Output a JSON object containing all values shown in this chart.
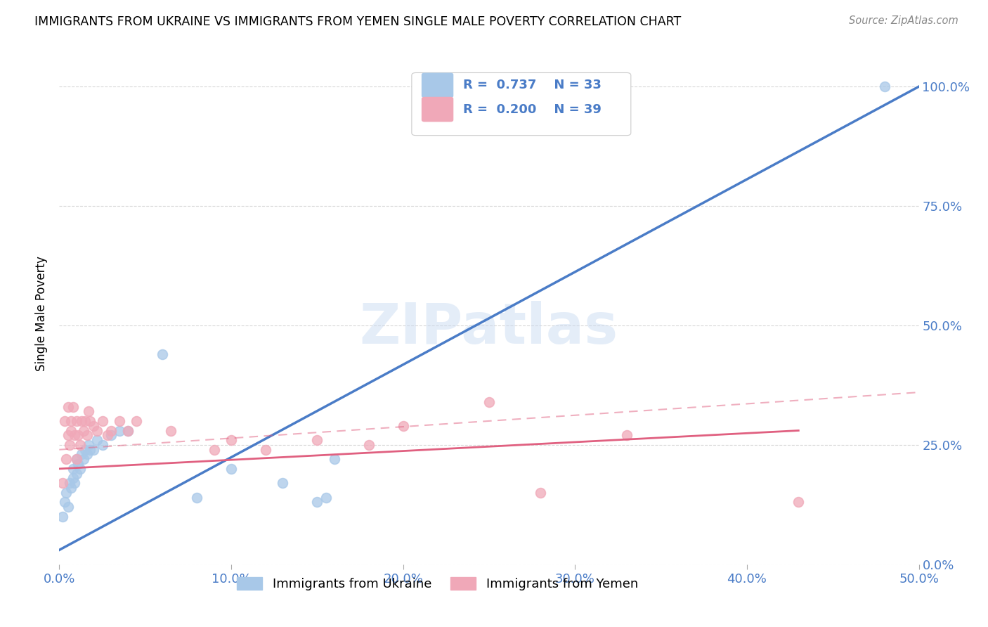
{
  "title": "IMMIGRANTS FROM UKRAINE VS IMMIGRANTS FROM YEMEN SINGLE MALE POVERTY CORRELATION CHART",
  "source": "Source: ZipAtlas.com",
  "ylabel": "Single Male Poverty",
  "x_tick_labels": [
    "0.0%",
    "10.0%",
    "20.0%",
    "30.0%",
    "40.0%",
    "50.0%"
  ],
  "y_tick_labels_right": [
    "0.0%",
    "25.0%",
    "50.0%",
    "75.0%",
    "100.0%"
  ],
  "xlim": [
    0.0,
    0.5
  ],
  "ylim": [
    0.0,
    1.05
  ],
  "ukraine_R": 0.737,
  "ukraine_N": 33,
  "yemen_R": 0.2,
  "yemen_N": 39,
  "ukraine_color": "#a8c8e8",
  "ukraine_line_color": "#4a7cc7",
  "yemen_color": "#f0a8b8",
  "yemen_line_color": "#e06080",
  "legend_text_color": "#4a7cc7",
  "watermark": "ZIPatlas",
  "ukraine_scatter_x": [
    0.002,
    0.003,
    0.004,
    0.005,
    0.006,
    0.007,
    0.008,
    0.008,
    0.009,
    0.01,
    0.01,
    0.011,
    0.012,
    0.013,
    0.014,
    0.015,
    0.016,
    0.017,
    0.018,
    0.02,
    0.022,
    0.025,
    0.03,
    0.035,
    0.04,
    0.06,
    0.08,
    0.1,
    0.13,
    0.15,
    0.155,
    0.16,
    0.48
  ],
  "ukraine_scatter_y": [
    0.1,
    0.13,
    0.15,
    0.12,
    0.17,
    0.16,
    0.2,
    0.18,
    0.17,
    0.22,
    0.19,
    0.21,
    0.2,
    0.23,
    0.22,
    0.24,
    0.23,
    0.25,
    0.24,
    0.24,
    0.26,
    0.25,
    0.27,
    0.28,
    0.28,
    0.44,
    0.14,
    0.2,
    0.17,
    0.13,
    0.14,
    0.22,
    1.0
  ],
  "ukraine_line_x": [
    0.0,
    0.5
  ],
  "ukraine_line_y": [
    0.03,
    1.0
  ],
  "yemen_scatter_x": [
    0.002,
    0.003,
    0.004,
    0.005,
    0.005,
    0.006,
    0.007,
    0.007,
    0.008,
    0.009,
    0.01,
    0.01,
    0.011,
    0.012,
    0.013,
    0.014,
    0.015,
    0.016,
    0.017,
    0.018,
    0.02,
    0.022,
    0.025,
    0.028,
    0.03,
    0.035,
    0.04,
    0.045,
    0.065,
    0.09,
    0.1,
    0.12,
    0.15,
    0.18,
    0.2,
    0.25,
    0.28,
    0.33,
    0.43
  ],
  "yemen_scatter_y": [
    0.17,
    0.3,
    0.22,
    0.27,
    0.33,
    0.25,
    0.3,
    0.28,
    0.33,
    0.27,
    0.22,
    0.3,
    0.27,
    0.25,
    0.3,
    0.28,
    0.3,
    0.27,
    0.32,
    0.3,
    0.29,
    0.28,
    0.3,
    0.27,
    0.28,
    0.3,
    0.28,
    0.3,
    0.28,
    0.24,
    0.26,
    0.24,
    0.26,
    0.25,
    0.29,
    0.34,
    0.15,
    0.27,
    0.13
  ],
  "yemen_solid_line_x": [
    0.0,
    0.43
  ],
  "yemen_solid_line_y": [
    0.2,
    0.28
  ],
  "yemen_dashed_line_x": [
    0.0,
    0.5
  ],
  "yemen_dashed_line_y": [
    0.24,
    0.36
  ],
  "background_color": "#ffffff",
  "grid_color": "#d8d8d8"
}
